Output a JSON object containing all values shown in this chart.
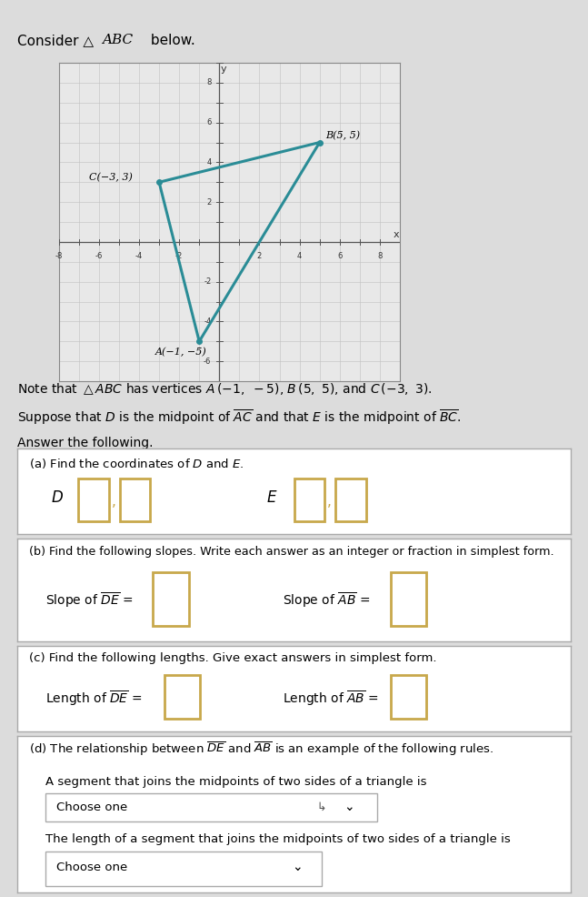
{
  "title_text": "Consider △",
  "title_text2": "ABC below.",
  "vertices": {
    "A": [
      -1,
      -5
    ],
    "B": [
      5,
      5
    ],
    "C": [
      -3,
      3
    ]
  },
  "vertex_labels": {
    "A": "A(−1, −5)",
    "B": "B(5, 5)",
    "C": "C(−3, 3)"
  },
  "triangle_color": "#2a8c96",
  "grid_xlim": [
    -8,
    9
  ],
  "grid_ylim": [
    -7,
    9
  ],
  "bg_color": "#dcdcdc",
  "graph_bg": "#e8e8e8",
  "panel_bg": "#ffffff",
  "panel_border": "#aaaaaa",
  "box_color": "#c8a84b",
  "dropdown_border": "#aaaaaa",
  "teal_bar": "#3a9a6e"
}
